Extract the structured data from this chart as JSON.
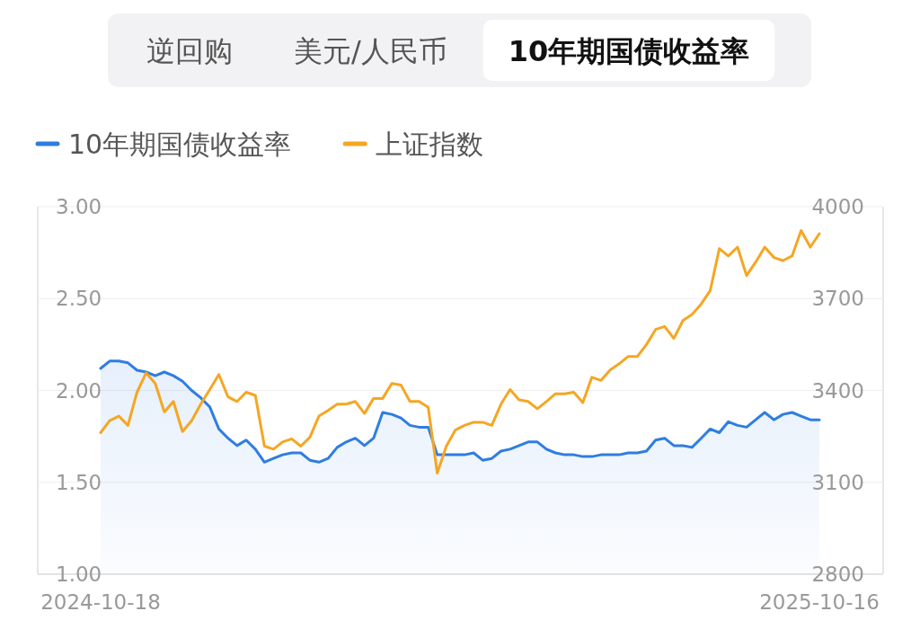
{
  "chart_data": {
    "type": "line",
    "annotations": [
      "逆回购",
      "美元/人民币",
      "10年期国债收益率"
    ],
    "categories": [
      "2024-10-18",
      null,
      null,
      null,
      null,
      null,
      null,
      null,
      null,
      null,
      null,
      null,
      null,
      null,
      null,
      null,
      null,
      null,
      null,
      null,
      null,
      null,
      null,
      null,
      null,
      null,
      null,
      null,
      null,
      null,
      null,
      null,
      null,
      null,
      null,
      null,
      null,
      null,
      null,
      null,
      null,
      null,
      null,
      null,
      null,
      null,
      null,
      null,
      null,
      null,
      null,
      null,
      null,
      null,
      null,
      null,
      null,
      null,
      null,
      null,
      null,
      null,
      null,
      null,
      null,
      null,
      null,
      null,
      null,
      null,
      null,
      null,
      null,
      null,
      null,
      null,
      null,
      null,
      null,
      "2025-10-16"
    ],
    "series": [
      {
        "name": "10年期国债收益率",
        "type": "area",
        "color": "#2f7de1",
        "axis": "y",
        "values": [
          2.12,
          2.16,
          2.16,
          2.15,
          2.11,
          2.1,
          2.08,
          2.1,
          2.08,
          2.05,
          2.0,
          1.96,
          1.91,
          1.79,
          1.74,
          1.7,
          1.73,
          1.68,
          1.61,
          1.63,
          1.65,
          1.66,
          1.66,
          1.62,
          1.61,
          1.63,
          1.69,
          1.72,
          1.74,
          1.7,
          1.74,
          1.88,
          1.87,
          1.85,
          1.81,
          1.8,
          1.8,
          1.65,
          1.65,
          1.65,
          1.65,
          1.66,
          1.62,
          1.63,
          1.67,
          1.68,
          1.7,
          1.72,
          1.72,
          1.68,
          1.66,
          1.65,
          1.65,
          1.64,
          1.64,
          1.65,
          1.65,
          1.65,
          1.66,
          1.66,
          1.67,
          1.73,
          1.74,
          1.7,
          1.7,
          1.69,
          1.74,
          1.79,
          1.77,
          1.83,
          1.81,
          1.8,
          1.84,
          1.88,
          1.84,
          1.87,
          1.88,
          1.86,
          1.84,
          1.84
        ]
      },
      {
        "name": "上证指数",
        "color": "#f5a623",
        "axis": "y2",
        "values": [
          3262,
          3301,
          3316,
          3286,
          3394,
          3457,
          3423,
          3330,
          3364,
          3266,
          3301,
          3355,
          3403,
          3452,
          3379,
          3364,
          3394,
          3384,
          3218,
          3208,
          3232,
          3242,
          3218,
          3247,
          3316,
          3335,
          3355,
          3355,
          3364,
          3325,
          3374,
          3374,
          3423,
          3418,
          3364,
          3364,
          3345,
          3130,
          3218,
          3271,
          3286,
          3296,
          3296,
          3286,
          3355,
          3403,
          3369,
          3364,
          3340,
          3364,
          3389,
          3389,
          3394,
          3360,
          3443,
          3433,
          3467,
          3487,
          3511,
          3511,
          3550,
          3599,
          3609,
          3570,
          3628,
          3648,
          3682,
          3726,
          3863,
          3839,
          3868,
          3775,
          3819,
          3868,
          3834,
          3824,
          3839,
          3922,
          3868,
          3912
        ]
      }
    ],
    "ylim": [
      1,
      3
    ],
    "yticks": [
      {
        "value": 1,
        "label": "1.00"
      },
      {
        "value": 1.5,
        "label": "1.50"
      },
      {
        "value": 2,
        "label": "2.00"
      },
      {
        "value": 2.5,
        "label": "2.50"
      },
      {
        "value": 3,
        "label": "3.00"
      }
    ],
    "y2lim": [
      2800,
      4000
    ],
    "y2ticks": [
      2800,
      3100,
      3400,
      3700,
      4000
    ],
    "grid": "y",
    "legend": "top left",
    "marker": "none"
  }
}
